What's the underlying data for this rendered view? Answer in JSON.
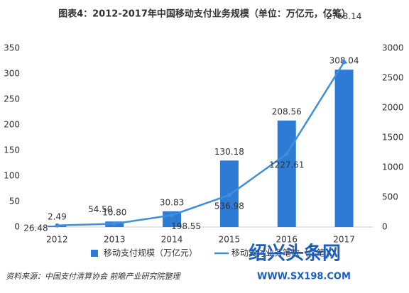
{
  "chart_data": {
    "type": "bar-line",
    "title": "图表4：2012-2017年中国移动支付业务规模（单位：万亿元，亿笔）",
    "categories": [
      "2012",
      "2013",
      "2014",
      "2015",
      "2016",
      "2017"
    ],
    "series": [
      {
        "name": "移动支付规模（万亿元）",
        "color": "#2e7bd6",
        "type": "bar",
        "values": [
          2.49,
          10.8,
          30.83,
          130.18,
          208.56,
          308.04
        ],
        "value_labels": [
          "2.49",
          "10.80",
          "30.83",
          "130.18",
          "208.56",
          "308.04"
        ]
      },
      {
        "name": "移动支付业务笔数（亿笔）",
        "color": "#3d8fdd",
        "type": "line",
        "axis": "y2",
        "values": [
          26.48,
          54.5,
          198.55,
          536.98,
          1227.61,
          2768.14
        ],
        "value_labels": [
          "26.48",
          "54.50",
          "198.55",
          "536.98",
          "1227.61",
          "2768.14"
        ]
      }
    ],
    "ylim": [
      0,
      350
    ],
    "yticks": [
      0,
      50,
      100,
      150,
      200,
      250,
      300,
      350
    ],
    "y2lim": [
      0,
      3000
    ],
    "y2ticks": [
      0,
      500,
      1000,
      1500,
      2000,
      2500,
      3000
    ],
    "source": "资料来源：中国支付清算协会  前瞻产业研究院整理"
  },
  "watermark": {
    "name": "绍兴头条网",
    "url": "WWW.SX198.COM"
  }
}
